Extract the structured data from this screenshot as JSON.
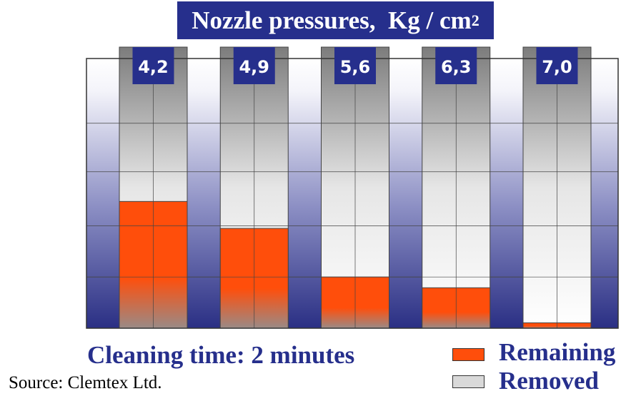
{
  "title": {
    "text": "Nozzle pressures,  Kg / cm",
    "superscript": "2"
  },
  "caption": "Cleaning time: 2 minutes",
  "source": "Source: Clemtex Ltd.",
  "legend": {
    "remaining": {
      "label": "Remaining",
      "color": "#ff4e0b"
    },
    "removed": {
      "label": "Removed",
      "color": "#d9d9d9"
    }
  },
  "colors": {
    "title_bg": "#262f8c",
    "label_bg": "#262f8c",
    "remaining": "#ff4e0b",
    "background_top": "#ffffff",
    "background_bottom": "#2a2f84"
  },
  "chart_data": {
    "type": "bar",
    "categories": [
      "4,2",
      "4,9",
      "5,6",
      "6,3",
      "7,0"
    ],
    "series": [
      {
        "name": "Remaining",
        "values": [
          47,
          37,
          19,
          15,
          2
        ]
      },
      {
        "name": "Removed",
        "values": [
          53,
          63,
          81,
          85,
          98
        ]
      }
    ],
    "stacked": true,
    "ylim": [
      0,
      100
    ],
    "grid": true,
    "legend_position": "bottom-right",
    "xlabel": "",
    "ylabel": ""
  }
}
